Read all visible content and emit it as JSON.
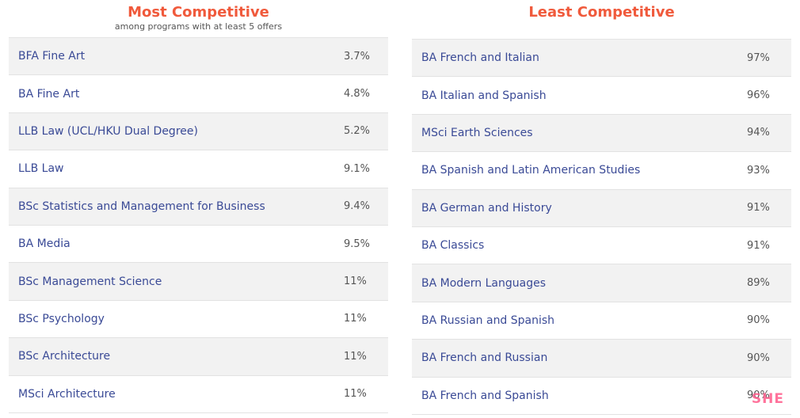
{
  "left": {
    "title": "Most Competitive",
    "subtitle": "among programs with at least 5 offers",
    "rows": [
      {
        "program": "BFA Fine Art",
        "rate": "3.7%"
      },
      {
        "program": "BA Fine Art",
        "rate": "4.8%"
      },
      {
        "program": "LLB Law (UCL/HKU Dual Degree)",
        "rate": "5.2%"
      },
      {
        "program": "LLB Law",
        "rate": "9.1%"
      },
      {
        "program": "BSc Statistics and Management for Business",
        "rate": "9.4%"
      },
      {
        "program": "BA Media",
        "rate": "9.5%"
      },
      {
        "program": "BSc Management Science",
        "rate": "11%"
      },
      {
        "program": "BSc Psychology",
        "rate": "11%"
      },
      {
        "program": "BSc Architecture",
        "rate": "11%"
      },
      {
        "program": "MSci Architecture",
        "rate": "11%"
      }
    ]
  },
  "right": {
    "title": "Least Competitive",
    "rows": [
      {
        "program": "BA French and Italian",
        "rate": "97%"
      },
      {
        "program": "BA Italian and Spanish",
        "rate": "96%"
      },
      {
        "program": "MSci Earth Sciences",
        "rate": "94%"
      },
      {
        "program": "BA Spanish and Latin American Studies",
        "rate": "93%"
      },
      {
        "program": "BA German and History",
        "rate": "91%"
      },
      {
        "program": "BA Classics",
        "rate": "91%"
      },
      {
        "program": "BA Modern Languages",
        "rate": "89%"
      },
      {
        "program": "BA Russian and Spanish",
        "rate": "90%"
      },
      {
        "program": "BA French and Russian",
        "rate": "90%"
      },
      {
        "program": "BA French and Spanish",
        "rate": "90%"
      }
    ]
  },
  "watermark": "SHE"
}
